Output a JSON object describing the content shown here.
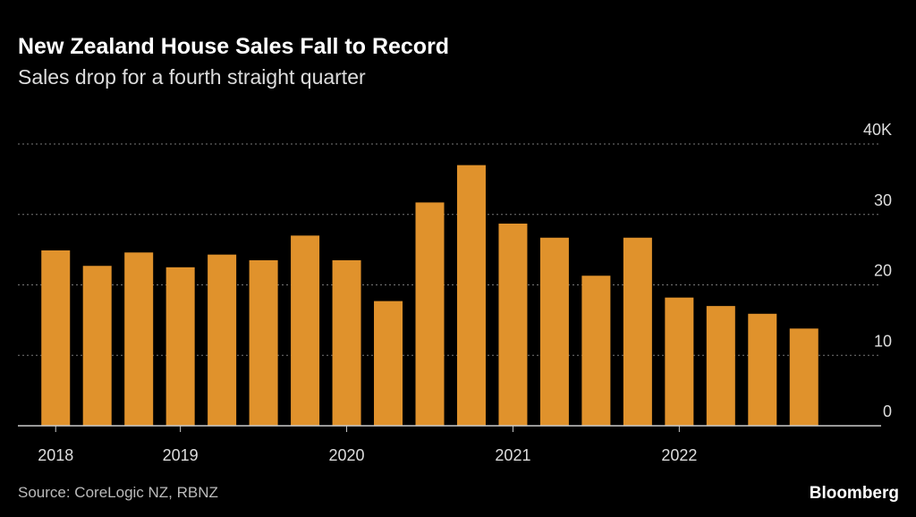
{
  "chart_data": {
    "type": "bar",
    "title": "New Zealand House Sales Fall to Record",
    "subtitle": "Sales drop for a fourth straight quarter",
    "source": "Source: CoreLogic NZ, RBNZ",
    "brand": "Bloomberg",
    "categories": [
      "2018",
      null,
      null,
      "2019",
      null,
      null,
      null,
      "2020",
      null,
      null,
      null,
      "2021",
      null,
      null,
      null,
      "2022",
      null,
      null,
      null
    ],
    "values": [
      24.9,
      22.7,
      24.6,
      22.5,
      24.3,
      23.5,
      27.0,
      23.5,
      17.7,
      31.7,
      37.0,
      28.7,
      26.7,
      21.3,
      26.7,
      18.2,
      17.0,
      15.9,
      13.8
    ],
    "color": "#e0922c",
    "ylim": [
      0,
      40
    ],
    "yticks": [
      0,
      10,
      20,
      30,
      {
        "value": 40,
        "label": "40K"
      }
    ],
    "grid": true
  }
}
